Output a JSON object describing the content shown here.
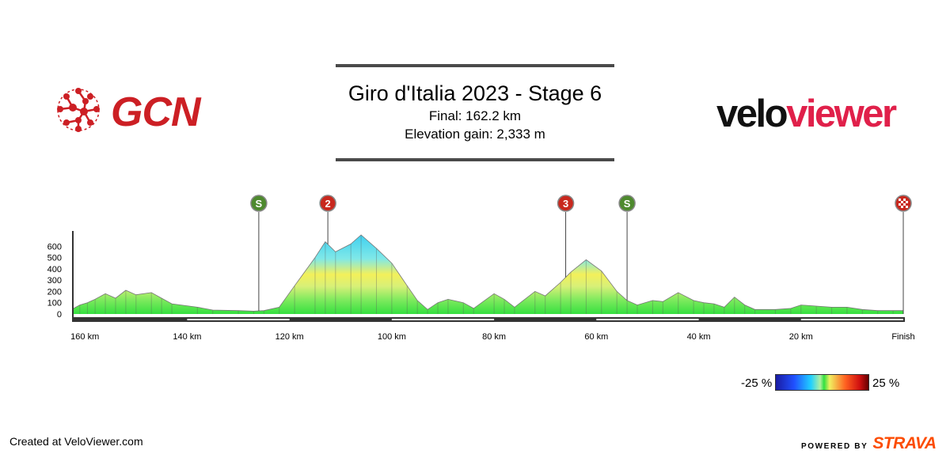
{
  "header": {
    "title": "Giro d'Italia 2023 - Stage 6",
    "final_distance": "Final: 162.2 km",
    "elevation_gain": "Elevation gain: 2,333 m"
  },
  "logos": {
    "left": "GCN",
    "right_part1": "velo",
    "right_part2": "viewer"
  },
  "footer": {
    "created": "Created at VeloViewer.com",
    "powered": "POWERED BY",
    "strava": "STRAVA"
  },
  "gradient_scale": {
    "min_label": "-25 %",
    "max_label": "25 %"
  },
  "colors": {
    "gcn_red": "#cc1f24",
    "strava_orange": "#fc4c02",
    "sprint_green": "#4e8a2e",
    "climb_red": "#c8281e"
  },
  "chart_data": {
    "type": "area",
    "x_unit": "km",
    "x_reversed": true,
    "xlim": [
      162.2,
      0
    ],
    "ylim": [
      0,
      700
    ],
    "y_ticks": [
      0,
      100,
      200,
      300,
      400,
      500,
      600
    ],
    "x_ticks": [
      160,
      140,
      120,
      100,
      80,
      60,
      40,
      20,
      0
    ],
    "x_tick_labels": [
      "160 km",
      "140 km",
      "120 km",
      "100 km",
      "80 km",
      "60 km",
      "40 km",
      "20 km",
      "Finish"
    ],
    "profile": [
      [
        162.2,
        50
      ],
      [
        161,
        80
      ],
      [
        159.5,
        100
      ],
      [
        158,
        130
      ],
      [
        156,
        180
      ],
      [
        154,
        140
      ],
      [
        152,
        210
      ],
      [
        150,
        170
      ],
      [
        147,
        190
      ],
      [
        145,
        140
      ],
      [
        143,
        90
      ],
      [
        138,
        60
      ],
      [
        135,
        35
      ],
      [
        130,
        30
      ],
      [
        127,
        25
      ],
      [
        125,
        30
      ],
      [
        122,
        60
      ],
      [
        119,
        250
      ],
      [
        115,
        500
      ],
      [
        113,
        640
      ],
      [
        111,
        550
      ],
      [
        108,
        620
      ],
      [
        106,
        700
      ],
      [
        103,
        580
      ],
      [
        100,
        450
      ],
      [
        97,
        250
      ],
      [
        95,
        120
      ],
      [
        93,
        40
      ],
      [
        91,
        100
      ],
      [
        89,
        130
      ],
      [
        86,
        100
      ],
      [
        84,
        50
      ],
      [
        80,
        180
      ],
      [
        78,
        130
      ],
      [
        76,
        60
      ],
      [
        72,
        200
      ],
      [
        70,
        160
      ],
      [
        67,
        280
      ],
      [
        65,
        370
      ],
      [
        62,
        480
      ],
      [
        59,
        380
      ],
      [
        56,
        200
      ],
      [
        54,
        120
      ],
      [
        52,
        80
      ],
      [
        49,
        120
      ],
      [
        47,
        110
      ],
      [
        44,
        190
      ],
      [
        41,
        120
      ],
      [
        39,
        100
      ],
      [
        37,
        90
      ],
      [
        35,
        60
      ],
      [
        33,
        150
      ],
      [
        31,
        80
      ],
      [
        29,
        40
      ],
      [
        25,
        40
      ],
      [
        22,
        50
      ],
      [
        20,
        80
      ],
      [
        17,
        70
      ],
      [
        14,
        60
      ],
      [
        11,
        60
      ],
      [
        8,
        40
      ],
      [
        5,
        30
      ],
      [
        2,
        30
      ],
      [
        0,
        30
      ]
    ],
    "markers": [
      {
        "type": "sprint",
        "symbol": "S",
        "km": 126
      },
      {
        "type": "climb",
        "symbol": "2",
        "km": 112.5
      },
      {
        "type": "climb",
        "symbol": "3",
        "km": 66
      },
      {
        "type": "sprint",
        "symbol": "S",
        "km": 54
      },
      {
        "type": "finish",
        "symbol": "finish-flag",
        "km": 0
      }
    ]
  }
}
